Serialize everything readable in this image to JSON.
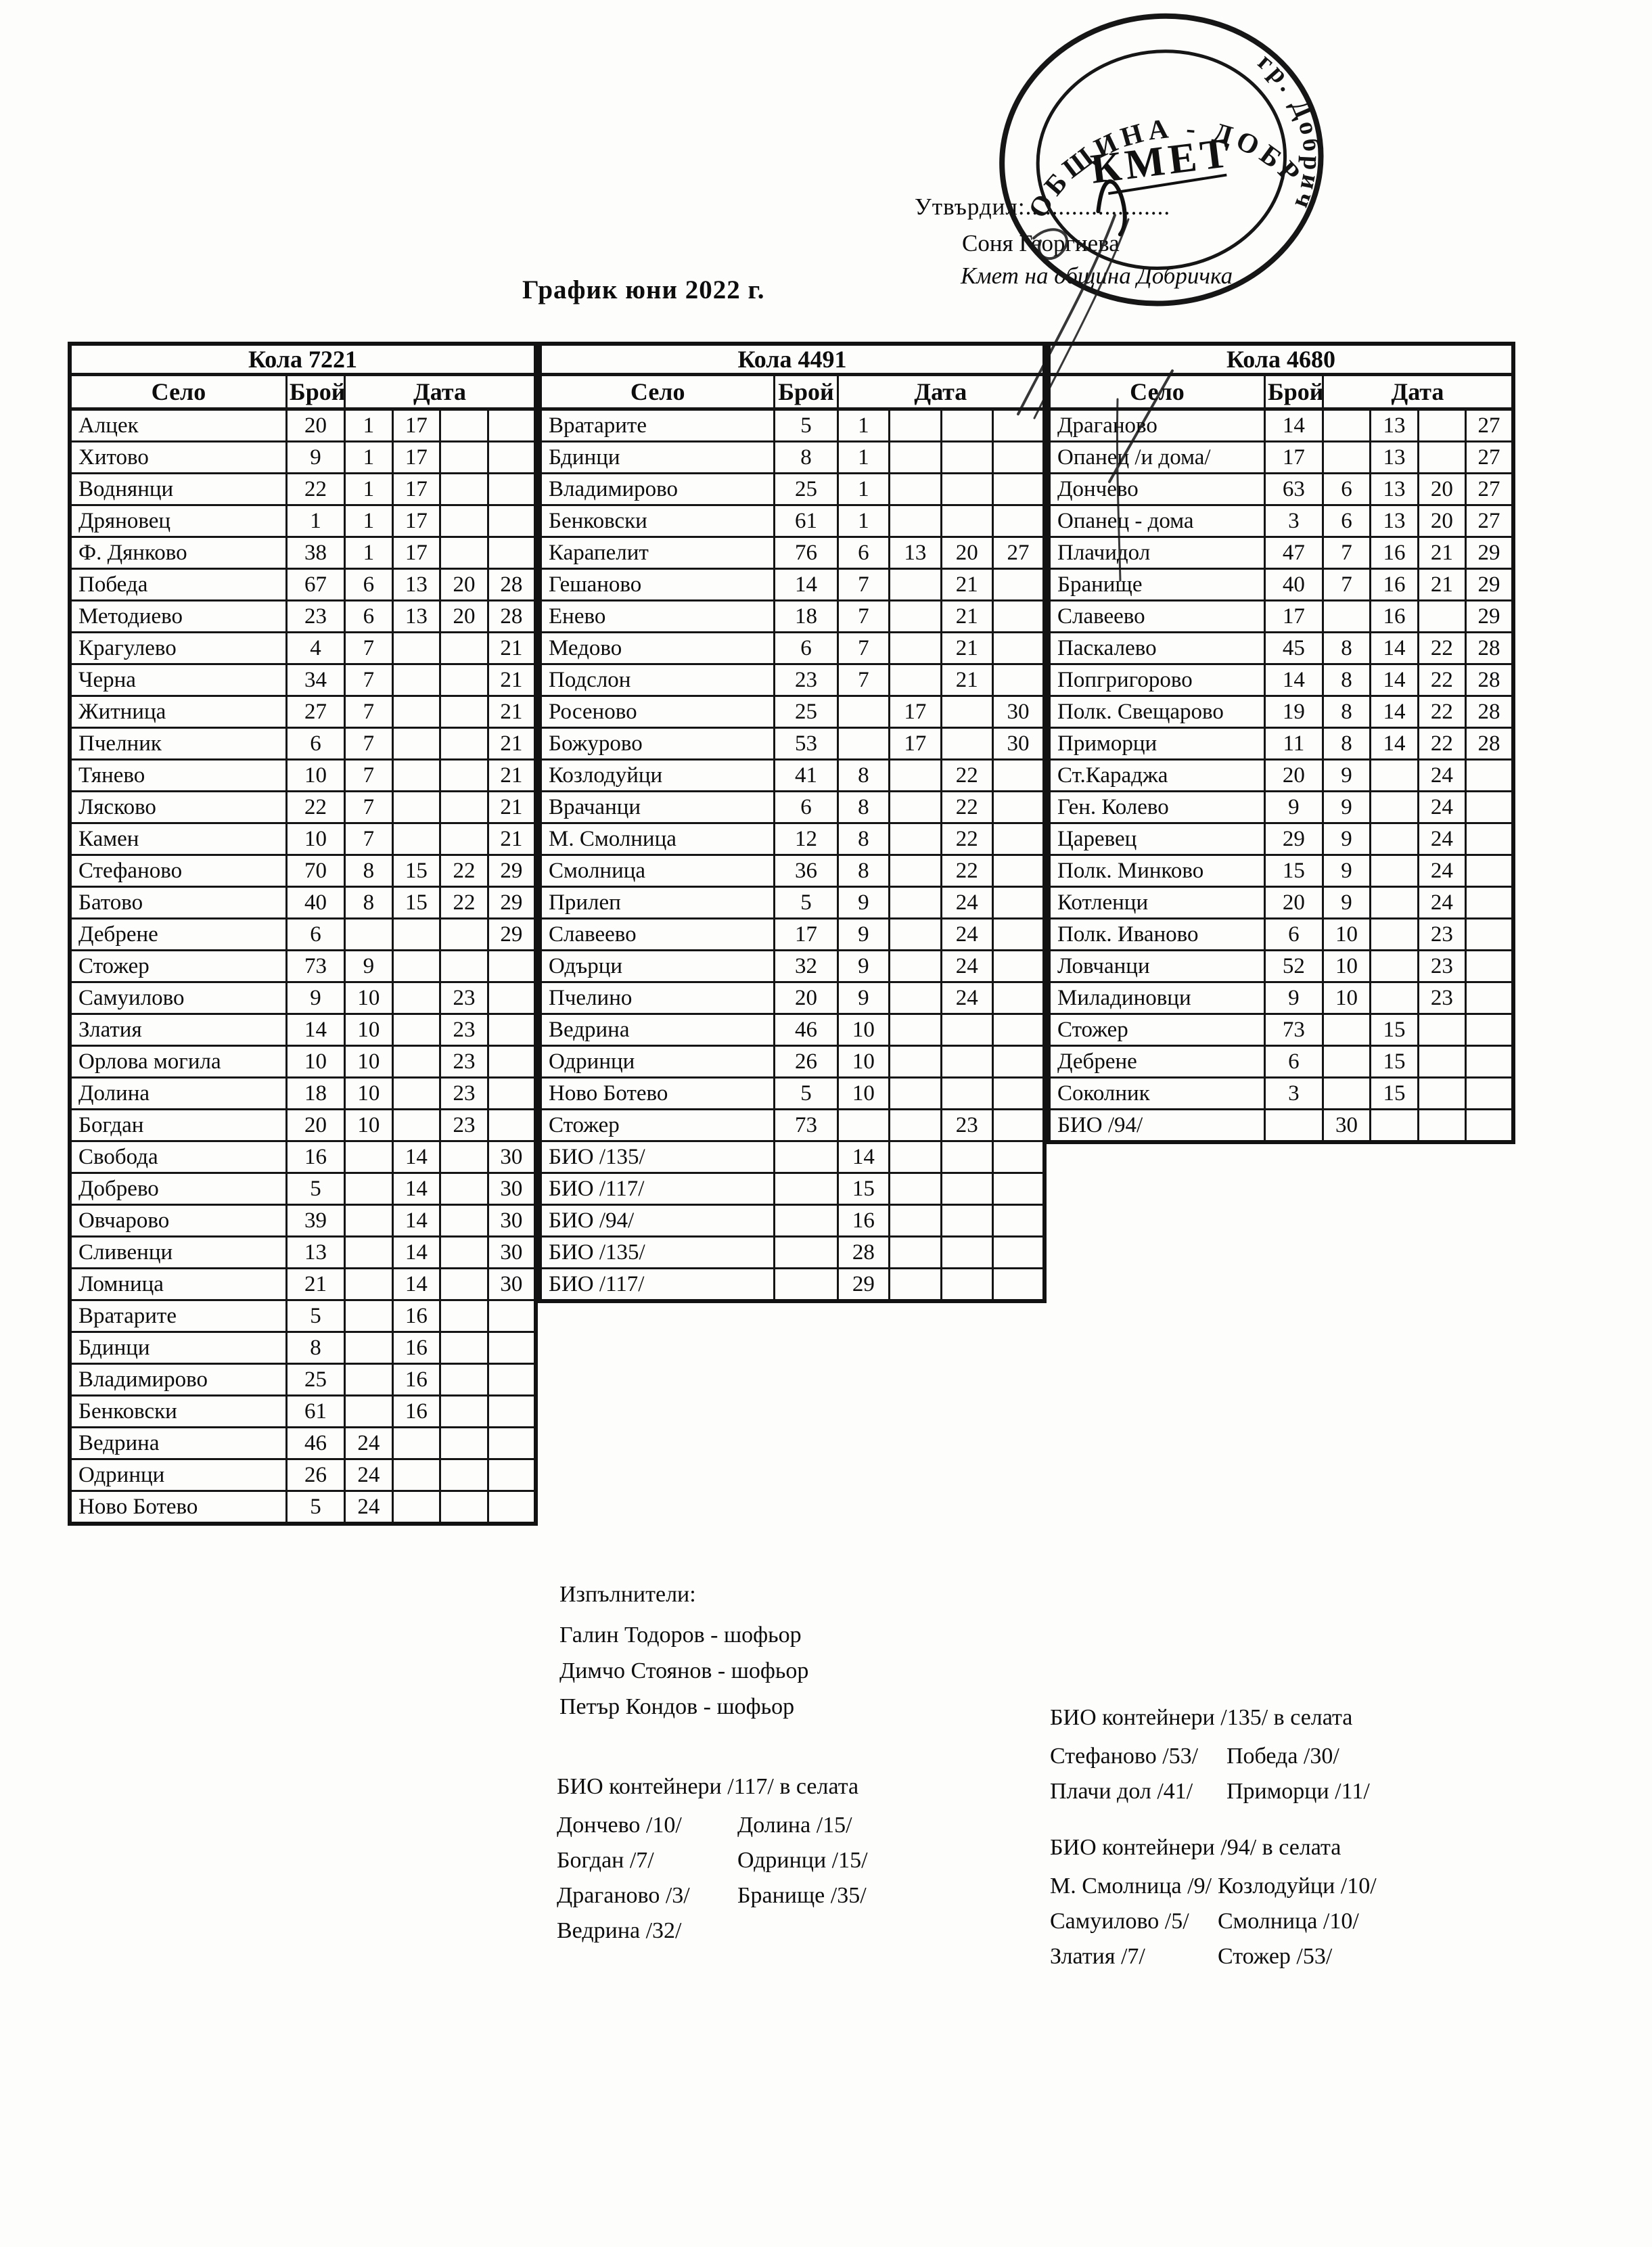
{
  "page": {
    "title": "График юни 2022 г."
  },
  "approval": {
    "label": "Утвърдил:......................",
    "name": "Соня Георгиева",
    "role": "Кмет  на община Добричка"
  },
  "stamp": {
    "ring_text_top": "ОБЩИНА - ДОБРИЧ",
    "ring_text_right": "гр. Добрич",
    "center": "КМЕТ"
  },
  "tables": [
    {
      "car": "Кола 7221",
      "headers": {
        "village": "Село",
        "count": "Брой",
        "date": "Дата"
      },
      "rows": [
        [
          "Алцек",
          "20",
          "1",
          "17",
          "",
          ""
        ],
        [
          "Хитово",
          "9",
          "1",
          "17",
          "",
          ""
        ],
        [
          "Воднянци",
          "22",
          "1",
          "17",
          "",
          ""
        ],
        [
          "Дряновец",
          "1",
          "1",
          "17",
          "",
          ""
        ],
        [
          "Ф. Дянково",
          "38",
          "1",
          "17",
          "",
          ""
        ],
        [
          "Победа",
          "67",
          "6",
          "13",
          "20",
          "28"
        ],
        [
          "Методиево",
          "23",
          "6",
          "13",
          "20",
          "28"
        ],
        [
          "Крагулево",
          "4",
          "7",
          "",
          "",
          "21"
        ],
        [
          "Черна",
          "34",
          "7",
          "",
          "",
          "21"
        ],
        [
          "Житница",
          "27",
          "7",
          "",
          "",
          "21"
        ],
        [
          "Пчелник",
          "6",
          "7",
          "",
          "",
          "21"
        ],
        [
          "Тянево",
          "10",
          "7",
          "",
          "",
          "21"
        ],
        [
          "Лясково",
          "22",
          "7",
          "",
          "",
          "21"
        ],
        [
          "Камен",
          "10",
          "7",
          "",
          "",
          "21"
        ],
        [
          "Стефаново",
          "70",
          "8",
          "15",
          "22",
          "29"
        ],
        [
          "Батово",
          "40",
          "8",
          "15",
          "22",
          "29"
        ],
        [
          "Дебрене",
          "6",
          "",
          "",
          "",
          "29"
        ],
        [
          "Стожер",
          "73",
          "9",
          "",
          "",
          ""
        ],
        [
          "Самуилово",
          "9",
          "10",
          "",
          "23",
          ""
        ],
        [
          "Златия",
          "14",
          "10",
          "",
          "23",
          ""
        ],
        [
          "Орлова могила",
          "10",
          "10",
          "",
          "23",
          ""
        ],
        [
          "Долина",
          "18",
          "10",
          "",
          "23",
          ""
        ],
        [
          "Богдан",
          "20",
          "10",
          "",
          "23",
          ""
        ],
        [
          "Свобода",
          "16",
          "",
          "14",
          "",
          "30"
        ],
        [
          "Добрево",
          "5",
          "",
          "14",
          "",
          "30"
        ],
        [
          "Овчарово",
          "39",
          "",
          "14",
          "",
          "30"
        ],
        [
          "Сливенци",
          "13",
          "",
          "14",
          "",
          "30"
        ],
        [
          "Ломница",
          "21",
          "",
          "14",
          "",
          "30"
        ],
        [
          "Вратарите",
          "5",
          "",
          "16",
          "",
          ""
        ],
        [
          "Бдинци",
          "8",
          "",
          "16",
          "",
          ""
        ],
        [
          "Владимирово",
          "25",
          "",
          "16",
          "",
          ""
        ],
        [
          "Бенковски",
          "61",
          "",
          "16",
          "",
          ""
        ],
        [
          "Ведрина",
          "46",
          "24",
          "",
          "",
          ""
        ],
        [
          "Одринци",
          "26",
          "24",
          "",
          "",
          ""
        ],
        [
          "Ново Ботево",
          "5",
          "24",
          "",
          "",
          ""
        ]
      ]
    },
    {
      "car": "Кола 4491",
      "headers": {
        "village": "Село",
        "count": "Брой",
        "date": "Дата"
      },
      "rows": [
        [
          "Вратарите",
          "5",
          "1",
          "",
          "",
          ""
        ],
        [
          "Бдинци",
          "8",
          "1",
          "",
          "",
          ""
        ],
        [
          "Владимирово",
          "25",
          "1",
          "",
          "",
          ""
        ],
        [
          "Бенковски",
          "61",
          "1",
          "",
          "",
          ""
        ],
        [
          "Карапелит",
          "76",
          "6",
          "13",
          "20",
          "27"
        ],
        [
          "Гешаново",
          "14",
          "7",
          "",
          "21",
          ""
        ],
        [
          "Енево",
          "18",
          "7",
          "",
          "21",
          ""
        ],
        [
          "Медово",
          "6",
          "7",
          "",
          "21",
          ""
        ],
        [
          "Подслон",
          "23",
          "7",
          "",
          "21",
          ""
        ],
        [
          "Росеново",
          "25",
          "",
          "17",
          "",
          "30"
        ],
        [
          "Божурово",
          "53",
          "",
          "17",
          "",
          "30"
        ],
        [
          "Козлодуйци",
          "41",
          "8",
          "",
          "22",
          ""
        ],
        [
          "Врачанци",
          "6",
          "8",
          "",
          "22",
          ""
        ],
        [
          "М. Смолница",
          "12",
          "8",
          "",
          "22",
          ""
        ],
        [
          "Смолница",
          "36",
          "8",
          "",
          "22",
          ""
        ],
        [
          "Прилеп",
          "5",
          "9",
          "",
          "24",
          ""
        ],
        [
          "Славеево",
          "17",
          "9",
          "",
          "24",
          ""
        ],
        [
          "Одърци",
          "32",
          "9",
          "",
          "24",
          ""
        ],
        [
          "Пчелино",
          "20",
          "9",
          "",
          "24",
          ""
        ],
        [
          "Ведрина",
          "46",
          "10",
          "",
          "",
          ""
        ],
        [
          "Одринци",
          "26",
          "10",
          "",
          "",
          ""
        ],
        [
          "Ново Ботево",
          "5",
          "10",
          "",
          "",
          ""
        ],
        [
          "Стожер",
          "73",
          "",
          "",
          "23",
          ""
        ],
        [
          "БИО /135/",
          "",
          "14",
          "",
          "",
          ""
        ],
        [
          "БИО /117/",
          "",
          "15",
          "",
          "",
          ""
        ],
        [
          "БИО /94/",
          "",
          "16",
          "",
          "",
          ""
        ],
        [
          "БИО /135/",
          "",
          "28",
          "",
          "",
          ""
        ],
        [
          "БИО /117/",
          "",
          "29",
          "",
          "",
          ""
        ]
      ]
    },
    {
      "car": "Кола 4680",
      "headers": {
        "village": "Село",
        "count": "Брой",
        "date": "Дата"
      },
      "rows": [
        [
          "Драганово",
          "14",
          "",
          "13",
          "",
          "27"
        ],
        [
          "Опанец /и дома/",
          "17",
          "",
          "13",
          "",
          "27"
        ],
        [
          "Дончево",
          "63",
          "6",
          "13",
          "20",
          "27"
        ],
        [
          "Опанец - дома",
          "3",
          "6",
          "13",
          "20",
          "27"
        ],
        [
          "Плачидол",
          "47",
          "7",
          "16",
          "21",
          "29"
        ],
        [
          "Бранище",
          "40",
          "7",
          "16",
          "21",
          "29"
        ],
        [
          "Славеево",
          "17",
          "",
          "16",
          "",
          "29"
        ],
        [
          "Паскалево",
          "45",
          "8",
          "14",
          "22",
          "28"
        ],
        [
          "Попгригорово",
          "14",
          "8",
          "14",
          "22",
          "28"
        ],
        [
          "Полк. Свещарово",
          "19",
          "8",
          "14",
          "22",
          "28"
        ],
        [
          "Приморци",
          "11",
          "8",
          "14",
          "22",
          "28"
        ],
        [
          "Ст.Караджа",
          "20",
          "9",
          "",
          "24",
          ""
        ],
        [
          "Ген. Колево",
          "9",
          "9",
          "",
          "24",
          ""
        ],
        [
          "Царевец",
          "29",
          "9",
          "",
          "24",
          ""
        ],
        [
          "Полк. Минково",
          "15",
          "9",
          "",
          "24",
          ""
        ],
        [
          "Котленци",
          "20",
          "9",
          "",
          "24",
          ""
        ],
        [
          "Полк. Иваново",
          "6",
          "10",
          "",
          "23",
          ""
        ],
        [
          "Ловчанци",
          "52",
          "10",
          "",
          "23",
          ""
        ],
        [
          "Миладиновци",
          "9",
          "10",
          "",
          "23",
          ""
        ],
        [
          "Стожер",
          "73",
          "",
          "15",
          "",
          ""
        ],
        [
          "Дебрене",
          "6",
          "",
          "15",
          "",
          ""
        ],
        [
          "Соколник",
          "3",
          "",
          "15",
          "",
          ""
        ],
        [
          "БИО /94/",
          "",
          "30",
          "",
          "",
          ""
        ]
      ]
    }
  ],
  "executors": {
    "heading": "Изпълнители:",
    "people": [
      "Галин Тодоров - шофьор",
      "Димчо Стоянов - шофьор",
      "Петър Кондов - шофьор"
    ]
  },
  "bio_sections": [
    {
      "heading": "БИО контейнери /117/ в селата",
      "left": [
        "Дончево /10/",
        "Богдан /7/",
        "Драганово /3/",
        "Ведрина /32/"
      ],
      "right": [
        "Долина /15/",
        "Одринци /15/",
        "Бранище /35/"
      ]
    },
    {
      "heading": "БИО контейнери /135/ в селата",
      "left": [
        "Стефаново /53/",
        "Плачи дол /41/"
      ],
      "right": [
        "Победа /30/",
        "Приморци /11/"
      ]
    },
    {
      "heading": "БИО контейнери /94/ в селата",
      "left": [
        "М. Смолница /9/",
        "Самуилово /5/",
        "Златия /7/"
      ],
      "right": [
        "Козлодуйци /10/",
        "Смолница /10/",
        "Стожер /53/"
      ]
    }
  ]
}
